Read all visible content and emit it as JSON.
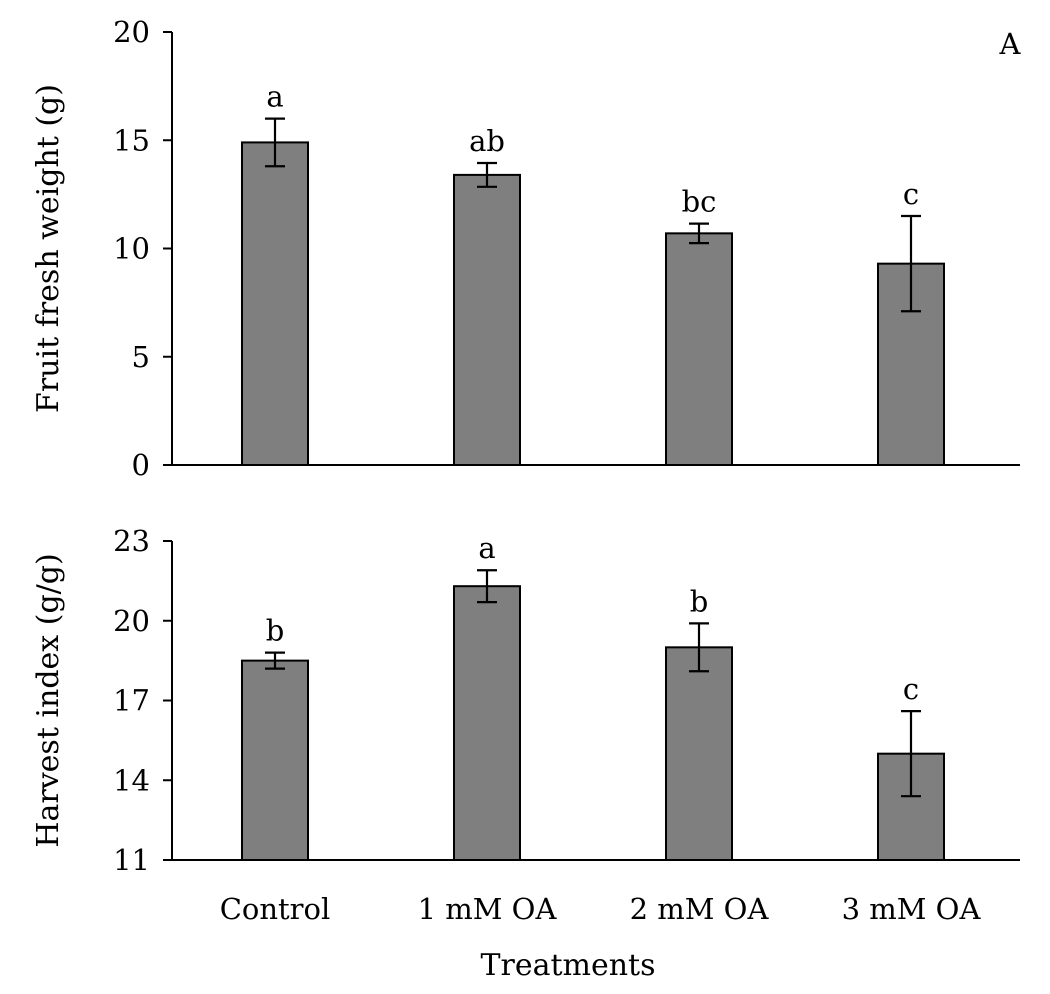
{
  "chart_data": [
    {
      "type": "bar",
      "panel_label": "A",
      "ylabel": "Fruit fresh weight (g)",
      "ylim": [
        0,
        20
      ],
      "yticks": [
        0,
        5,
        10,
        15,
        20
      ],
      "categories": [
        "Control",
        "1 mM OA",
        "2 mM OA",
        "3 mM OA"
      ],
      "values": [
        14.9,
        13.4,
        10.7,
        9.3
      ],
      "errors": [
        1.1,
        0.55,
        0.45,
        2.2
      ],
      "significance": [
        "a",
        "ab",
        "bc",
        "c"
      ],
      "grid": false
    },
    {
      "type": "bar",
      "ylabel": "Harvest index (g/g)",
      "ylim": [
        11,
        23
      ],
      "yticks": [
        11,
        14,
        17,
        20,
        23
      ],
      "categories": [
        "Control",
        "1 mM OA",
        "2 mM OA",
        "3 mM OA"
      ],
      "values": [
        18.5,
        21.3,
        19.0,
        15.0
      ],
      "errors": [
        0.3,
        0.6,
        0.9,
        1.6
      ],
      "significance": [
        "b",
        "a",
        "b",
        "c"
      ],
      "xlabel": "Treatments",
      "grid": false
    }
  ]
}
